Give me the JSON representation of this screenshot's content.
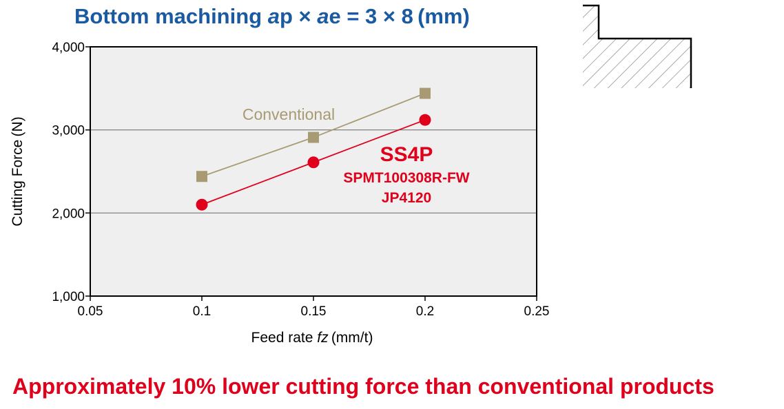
{
  "title": {
    "prefix": "Bottom machining  ",
    "ap_italic": "a",
    "ap_rest": "p × ",
    "ae_italic": "a",
    "ae_rest": "e = 3 × 8 (mm)"
  },
  "footer": "Approximately 10% lower cutting force than conventional products",
  "colors": {
    "title": "#1a5aa0",
    "conventional": "#a89a72",
    "ss4p": "#e0001b",
    "plot_bg": "#efefef"
  },
  "chart_data": {
    "type": "line",
    "xlabel_prefix": "Feed rate ",
    "xlabel_italic": "fz",
    "xlabel_suffix": " (mm/t)",
    "ylabel": "Cutting Force (N)",
    "xlim": [
      0.05,
      0.25
    ],
    "ylim": [
      1000,
      4000
    ],
    "xticks": [
      0.05,
      0.1,
      0.15,
      0.2,
      0.25
    ],
    "xtick_labels": [
      "0.05",
      "0.1",
      "0.15",
      "0.2",
      "0.25"
    ],
    "yticks": [
      1000,
      2000,
      3000,
      4000
    ],
    "ytick_labels": [
      "1,000",
      "2,000",
      "3,000",
      "4,000"
    ],
    "gridlines_y": [
      2000,
      3000
    ],
    "series": [
      {
        "name": "Conventional",
        "marker": "square",
        "x": [
          0.1,
          0.15,
          0.2
        ],
        "y": [
          2440,
          2910,
          3440
        ],
        "label_lines": [
          "Conventional"
        ]
      },
      {
        "name": "SS4P",
        "marker": "circle",
        "x": [
          0.1,
          0.15,
          0.2
        ],
        "y": [
          2100,
          2610,
          3120
        ],
        "label_lines": [
          "SS4P",
          "SPMT100308R-FW",
          "JP4120"
        ]
      }
    ]
  }
}
